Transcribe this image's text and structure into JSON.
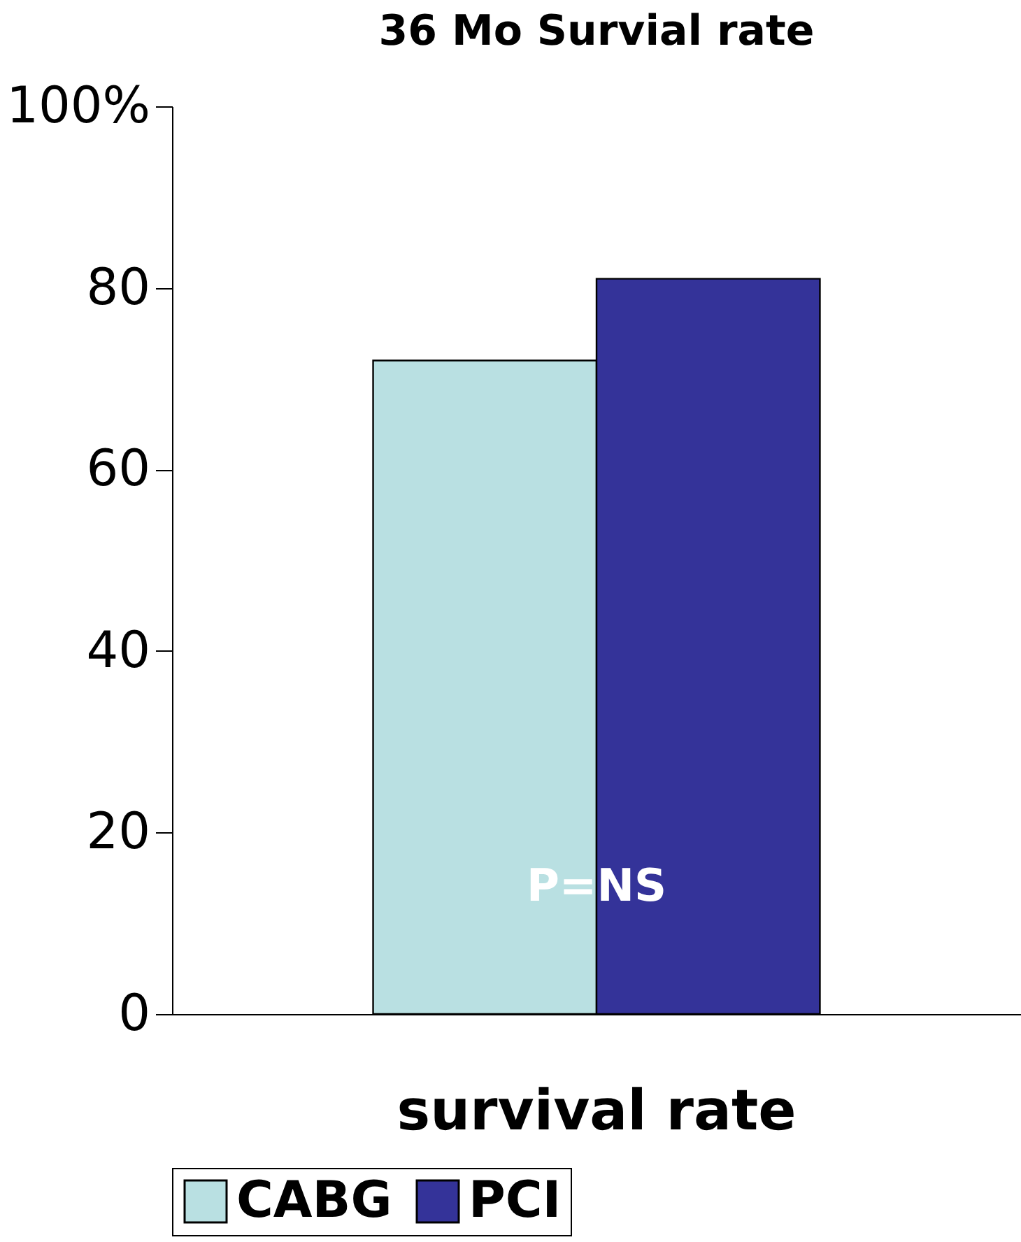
{
  "chart_data": {
    "type": "bar",
    "title": "36 Mo Survial rate",
    "categories": [
      "survival rate"
    ],
    "series": [
      {
        "name": "CABG",
        "color": "#b9e0e2",
        "values": [
          72
        ]
      },
      {
        "name": "PCI",
        "color": "#343399",
        "values": [
          81
        ]
      }
    ],
    "ylim": [
      0,
      100
    ],
    "yticks": [
      0,
      20,
      40,
      60,
      80,
      {
        "value": 100,
        "label": "100%"
      }
    ],
    "grid": false,
    "legend": "bottom",
    "annotations": [
      {
        "text": "P=NS",
        "x": "survival rate",
        "y": 14
      }
    ]
  }
}
